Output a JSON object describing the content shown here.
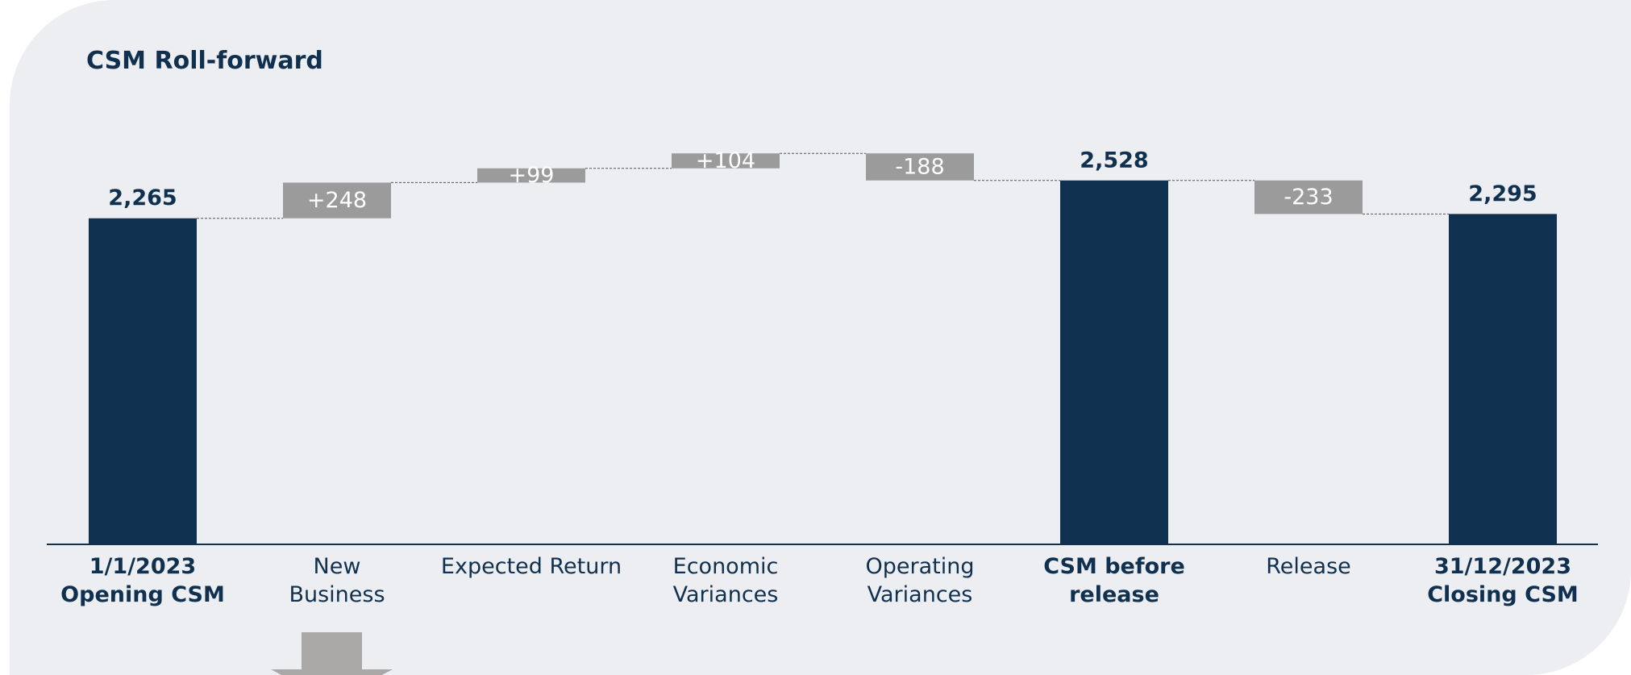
{
  "chart_data": {
    "type": "waterfall",
    "title": "CSM Roll-forward",
    "categories": [
      "1/1/2023\nOpening CSM",
      "New\nBusiness",
      "Expected Return",
      "Economic\nVariances",
      "Operating\nVariances",
      "CSM before\nrelease",
      "Release",
      "31/12/2023\nClosing CSM"
    ],
    "values": [
      2265,
      248,
      99,
      104,
      -188,
      2528,
      -233,
      2295
    ],
    "value_labels": [
      "2,265",
      "+248",
      "+99",
      "+104",
      "-188",
      "2,528",
      "-233",
      "2,295"
    ],
    "totals": [
      0,
      5,
      7
    ],
    "total_color": "#10304f",
    "change_color": "#9b9b9b"
  }
}
